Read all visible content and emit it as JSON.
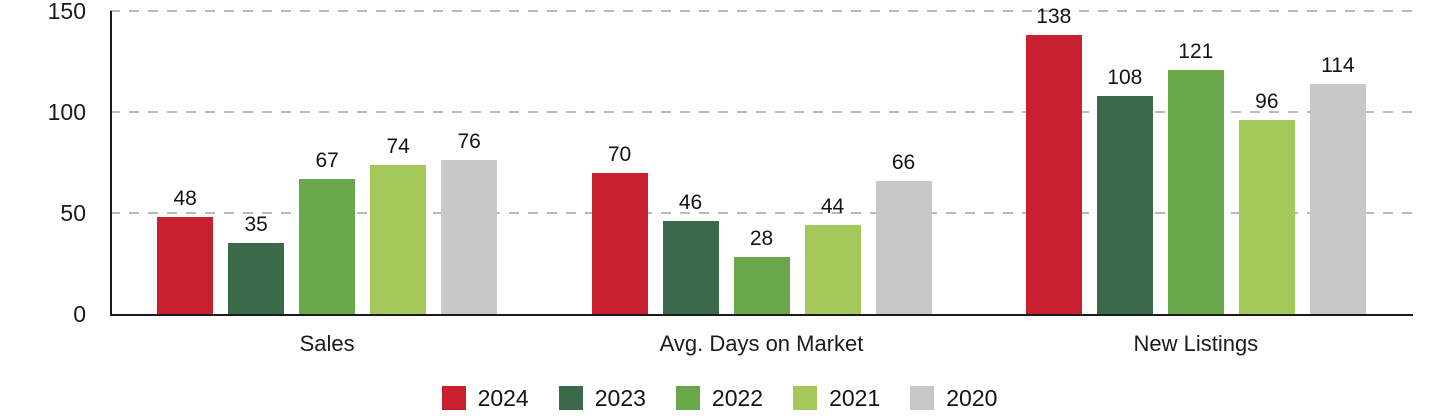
{
  "chart_data": {
    "type": "bar",
    "title": "",
    "categories": [
      "Sales",
      "Avg. Days on Market",
      "New Listings"
    ],
    "series": [
      {
        "name": "2024",
        "color": "#C8202F",
        "values": [
          48,
          70,
          138
        ]
      },
      {
        "name": "2023",
        "color": "#3A6A49",
        "values": [
          35,
          46,
          108
        ]
      },
      {
        "name": "2022",
        "color": "#69A74A",
        "values": [
          67,
          28,
          121
        ]
      },
      {
        "name": "2021",
        "color": "#A4C95A",
        "values": [
          74,
          44,
          96
        ]
      },
      {
        "name": "2020",
        "color": "#C8C8C8",
        "values": [
          76,
          66,
          114
        ]
      }
    ],
    "y_ticks": [
      0,
      50,
      100,
      150
    ],
    "ylim": [
      0,
      150
    ],
    "xlabel": "",
    "ylabel": "",
    "grid": "horizontal-dashed",
    "bar_labels": true,
    "legend_position": "bottom-center"
  },
  "colors": {
    "background": "#ffffff",
    "axis": "#1b1b1b",
    "gridline": "#b9b9b9",
    "text": "#141414"
  }
}
